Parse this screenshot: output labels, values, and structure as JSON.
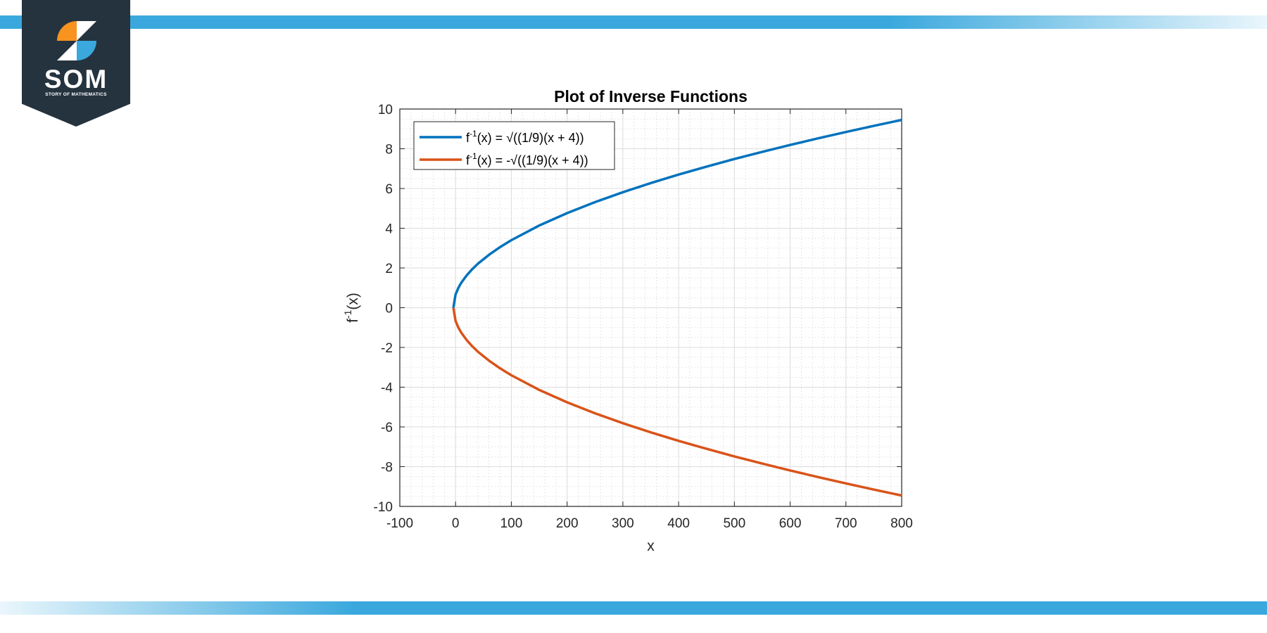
{
  "brand": {
    "logo_text": "SOM",
    "logo_subtitle": "STORY OF MATHEMATICS",
    "colors": {
      "dark": "#25333f",
      "orange": "#f7931e",
      "blue": "#3aa8dd",
      "white": "#ffffff"
    }
  },
  "chart_data": {
    "type": "line",
    "title": "Plot of Inverse Functions",
    "xlabel": "x",
    "ylabel_base": "f",
    "ylabel_sup": "-1",
    "ylabel_rest": "(x)",
    "xlim": [
      -100,
      800
    ],
    "ylim": [
      -10,
      10
    ],
    "xticks": [
      -100,
      0,
      100,
      200,
      300,
      400,
      500,
      600,
      700,
      800
    ],
    "yticks": [
      -10,
      -8,
      -6,
      -4,
      -2,
      0,
      2,
      4,
      6,
      8,
      10
    ],
    "grid": true,
    "minor_grid": true,
    "legend_position": "top-left",
    "series": [
      {
        "name_base": "f",
        "name_sup": "-1",
        "name_rest": "(x) = √((1/9)(x + 4))",
        "color": "#0072bd",
        "x": [
          -4,
          0,
          5,
          10,
          20,
          30,
          40,
          60,
          80,
          100,
          150,
          200,
          250,
          300,
          350,
          400,
          450,
          500,
          550,
          600,
          650,
          700,
          750,
          800
        ],
        "y": [
          0,
          0.667,
          1.0,
          1.247,
          1.633,
          1.944,
          2.211,
          2.667,
          3.055,
          3.399,
          4.137,
          4.761,
          5.312,
          5.812,
          6.272,
          6.7,
          7.102,
          7.483,
          7.845,
          8.192,
          8.524,
          8.844,
          9.153,
          9.452
        ]
      },
      {
        "name_base": "f",
        "name_sup": "-1",
        "name_rest": "(x) = -√((1/9)(x + 4))",
        "color": "#d95319",
        "x": [
          -4,
          0,
          5,
          10,
          20,
          30,
          40,
          60,
          80,
          100,
          150,
          200,
          250,
          300,
          350,
          400,
          450,
          500,
          550,
          600,
          650,
          700,
          750,
          800
        ],
        "y": [
          0,
          -0.667,
          -1.0,
          -1.247,
          -1.633,
          -1.944,
          -2.211,
          -2.667,
          -3.055,
          -3.399,
          -4.137,
          -4.761,
          -5.312,
          -5.812,
          -6.272,
          -6.7,
          -7.102,
          -7.483,
          -7.845,
          -8.192,
          -8.524,
          -8.844,
          -9.153,
          -9.452
        ]
      }
    ]
  }
}
